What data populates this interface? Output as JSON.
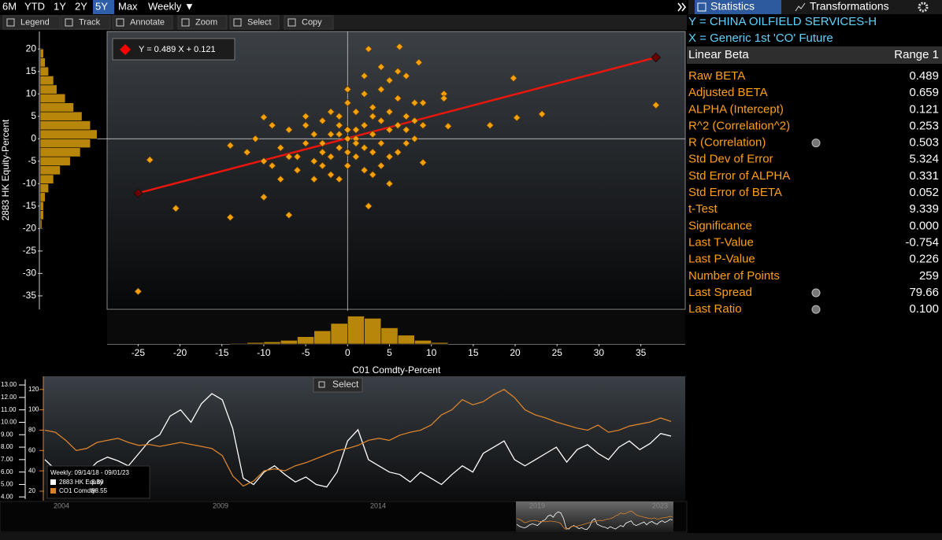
{
  "toolbar": {
    "periods": [
      "6M",
      "YTD",
      "1Y",
      "2Y",
      "5Y",
      "Max"
    ],
    "selected_period": 4,
    "frequency": "Weekly ▼",
    "tools": [
      "Legend",
      "Track",
      "Annotate",
      "Zoom",
      "Select",
      "Copy"
    ]
  },
  "tabs": [
    "Statistics",
    "Transformations"
  ],
  "stats": {
    "y_series": "Y = CHINA OILFIELD SERVICES-H",
    "x_series": "X = Generic 1st 'CO' Future",
    "title": "Linear Beta",
    "range": "Range 1",
    "rows": [
      [
        "Raw BETA",
        "0.489"
      ],
      [
        "Adjusted BETA",
        "0.659"
      ],
      [
        "ALPHA (Intercept)",
        "0.121"
      ],
      [
        "R^2 (Correlation^2)",
        "0.253"
      ],
      [
        "R (Correlation)",
        "0.503"
      ],
      [
        "Std Dev of Error",
        "5.324"
      ],
      [
        "Std Error of ALPHA",
        "0.331"
      ],
      [
        "Std Error of BETA",
        "0.052"
      ],
      [
        "t-Test",
        "9.339"
      ],
      [
        "Significance",
        "0.000"
      ],
      [
        "Last T-Value",
        "-0.754"
      ],
      [
        "Last P-Value",
        "0.226"
      ],
      [
        "Number of Points",
        "259"
      ],
      [
        "Last Spread",
        "79.66"
      ],
      [
        "Last Ratio",
        "0.100"
      ]
    ]
  },
  "select_button": "Select",
  "navigator_years": [
    "2004",
    "2009",
    "2014",
    "2019",
    "2023"
  ],
  "chart_data": [
    {
      "type": "scatter",
      "xlabel": "C01 Comdty-Percent",
      "ylabel": "2883 HK Equity-Percent",
      "annotation": "Y = 0.489 X + 0.121",
      "color": "#f5a10e",
      "fit": {
        "slope": 0.489,
        "intercept": 0.121,
        "x": [
          -25,
          36.8
        ],
        "color": "#e8160c"
      },
      "xlim": [
        -28.7,
        40.3
      ],
      "ylim": [
        -38,
        23.9
      ],
      "xticks": [
        -25,
        -20,
        -15,
        -10,
        -5,
        0,
        5,
        10,
        15,
        20,
        25,
        30,
        35
      ],
      "yticks": [
        -35,
        -30,
        -25,
        -20,
        -15,
        -10,
        -5,
        0,
        5,
        10,
        15,
        20
      ],
      "grid": false,
      "x": [
        -25,
        -23.6,
        -20.5,
        -14,
        -7,
        2.5,
        6.2,
        36.8,
        23.2,
        19.8,
        20.2,
        17,
        12,
        11.5,
        8.5,
        7,
        -10,
        -10,
        -14,
        -12,
        2.5,
        5,
        9,
        11.5,
        9,
        -3,
        -2,
        -1,
        0,
        1,
        2,
        3,
        4,
        5,
        -4,
        -5,
        -6,
        -7,
        -8,
        -9,
        -3,
        -1,
        0,
        1,
        2,
        3,
        4,
        5,
        6,
        7,
        8,
        -2,
        -4,
        0,
        2,
        3,
        4,
        5,
        6,
        7,
        -1,
        -2,
        1,
        0,
        -3,
        2,
        3,
        -5,
        -6,
        -8,
        1,
        -1,
        4,
        6,
        9,
        -10,
        -11,
        8,
        -2,
        0,
        1,
        -4,
        3,
        5,
        7,
        -7,
        -5,
        2,
        4,
        -3,
        0,
        6,
        8,
        -9,
        -1
      ],
      "y": [
        -34,
        -4.7,
        -15.5,
        -17.5,
        -17,
        20,
        20.5,
        7.5,
        5.5,
        13.5,
        4.7,
        3,
        2.8,
        10,
        17,
        14,
        4.8,
        -13,
        -1.5,
        -3,
        -15,
        -10,
        -5.3,
        9,
        8,
        -3,
        1,
        -2,
        0,
        2,
        3,
        1,
        4,
        2,
        -5,
        -1,
        -4,
        2,
        -2,
        -6,
        4,
        5,
        -6,
        -4,
        -7,
        -3,
        -1,
        6,
        3,
        5,
        0,
        -8,
        -9,
        8,
        10,
        7,
        11,
        13,
        9,
        2,
        3,
        -4,
        0,
        2,
        -1,
        -2,
        5,
        3,
        -7,
        -9,
        6,
        -9,
        -6,
        -3,
        3,
        -5,
        0,
        8,
        6,
        -3,
        -1,
        1,
        -8,
        -4,
        -1,
        -4,
        5,
        14,
        16,
        -6,
        11,
        15,
        4,
        3,
        1
      ]
    },
    {
      "type": "histogram-y",
      "color": "#b8860b",
      "bins": [
        -20,
        -18,
        -16,
        -14,
        -12,
        -10,
        -8,
        -6,
        -4,
        -2,
        0,
        2,
        4,
        6,
        8,
        10,
        12,
        14,
        16,
        18,
        20
      ],
      "values": [
        1,
        2,
        2,
        3,
        5,
        8,
        12,
        18,
        24,
        30,
        34,
        30,
        25,
        20,
        15,
        10,
        8,
        5,
        3,
        2
      ],
      "xlim": [
        0,
        40
      ]
    },
    {
      "type": "histogram-x",
      "color": "#b8860b",
      "bins": [
        -14,
        -12,
        -10,
        -8,
        -6,
        -4,
        -2,
        0,
        2,
        4,
        6,
        8,
        10,
        12
      ],
      "values": [
        1,
        2,
        3,
        5,
        10,
        18,
        28,
        38,
        35,
        22,
        12,
        5,
        2
      ],
      "ylim": [
        0,
        45
      ]
    },
    {
      "type": "line",
      "legend_title": "Weekly: 09/14/18 - 09/01/23",
      "ylim": [
        3.7,
        13.7
      ],
      "y2lim": [
        10.7,
        133
      ],
      "yticks": [
        {
          "value": 13,
          "label": "13.00"
        },
        {
          "value": 12,
          "label": "12.00"
        },
        {
          "value": 11,
          "label": "11.00"
        },
        {
          "value": 10,
          "label": "10.00"
        },
        {
          "value": 9,
          "label": "9.00"
        },
        {
          "value": 8,
          "label": "8.00"
        },
        {
          "value": 7,
          "label": "7.00"
        },
        {
          "value": 6,
          "label": "6.00"
        },
        {
          "value": 5,
          "label": "5.00"
        },
        {
          "value": 4,
          "label": "4.00"
        }
      ],
      "y2ticks": [
        120,
        100,
        80,
        60,
        40,
        20
      ],
      "series": [
        {
          "name": "2883 HK Equity",
          "last": "8.89",
          "color": "#ffffff",
          "values": [
            7.0,
            6.2,
            5.8,
            5.5,
            6.0,
            6.8,
            7.2,
            6.9,
            6.5,
            7.5,
            8.5,
            9.0,
            10.5,
            11.0,
            10.0,
            11.5,
            12.3,
            11.8,
            9.5,
            5.5,
            5.0,
            6.0,
            6.5,
            5.8,
            5.2,
            5.6,
            5.0,
            4.8,
            6.0,
            8.5,
            9.4,
            7.0,
            6.5,
            6.0,
            5.8,
            5.2,
            6.0,
            5.5,
            5.0,
            5.8,
            6.5,
            6.0,
            7.5,
            8.0,
            8.5,
            7.0,
            6.5,
            7.0,
            7.5,
            8.0,
            6.8,
            7.8,
            8.2,
            7.5,
            7.0,
            8.0,
            8.5,
            7.8,
            8.3,
            9.1,
            8.89
          ]
        },
        {
          "name": "CO1 Comdty",
          "last": "88.55",
          "color": "#d9822b",
          "axis": "y2",
          "values": [
            80,
            78,
            70,
            60,
            62,
            68,
            70,
            72,
            68,
            65,
            66,
            64,
            66,
            68,
            66,
            64,
            62,
            55,
            35,
            25,
            30,
            40,
            42,
            40,
            45,
            48,
            52,
            56,
            60,
            62,
            65,
            70,
            72,
            70,
            75,
            78,
            80,
            85,
            95,
            100,
            110,
            105,
            108,
            115,
            120,
            112,
            100,
            95,
            92,
            88,
            85,
            82,
            80,
            85,
            78,
            80,
            84,
            86,
            88,
            92,
            88.55
          ]
        }
      ]
    }
  ]
}
